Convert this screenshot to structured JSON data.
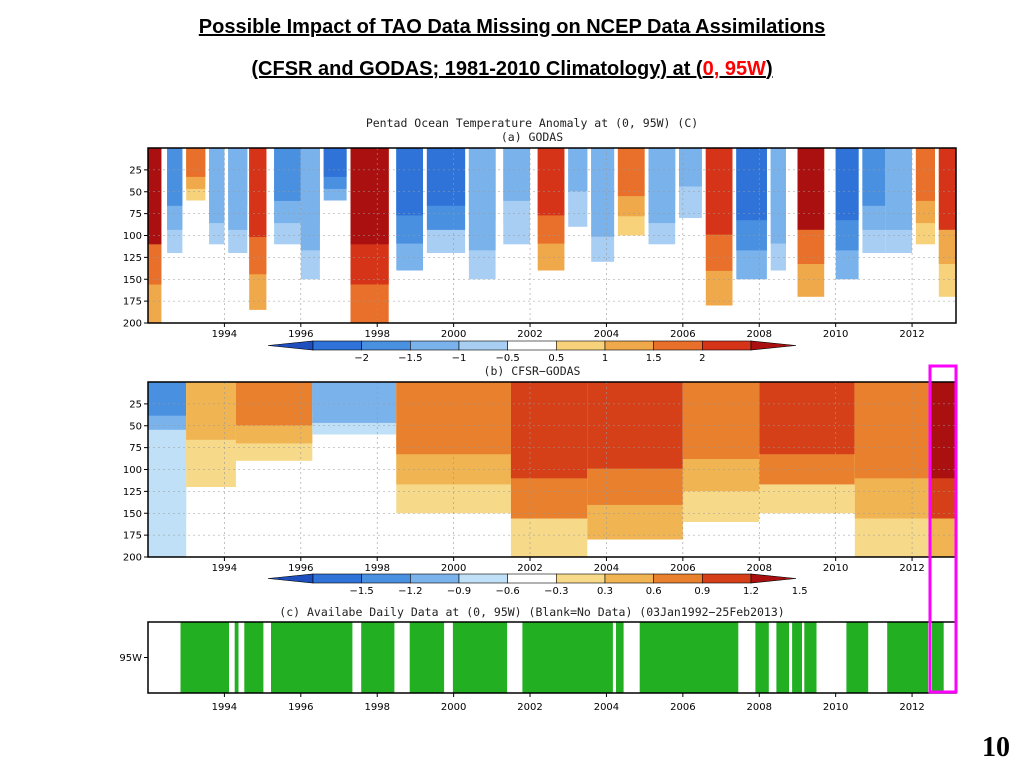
{
  "slide": {
    "title_line1": "Possible Impact of TAO Data Missing on NCEP Data Assimilations",
    "title_line2_prefix": "(CFSR and GODAS; 1981-2010 Climatology) at (",
    "title_line2_location": "0, 95W",
    "title_line2_suffix": ")",
    "page_number": "10",
    "highlight_color": "#ff00ff"
  },
  "figure_title": "Pentad Ocean Temperature Anomaly at (0, 95W) (C)",
  "chart_data": [
    {
      "type": "heatmap",
      "title": "(a) GODAS",
      "x_range": [
        1992.0,
        2013.15
      ],
      "x_ticks": [
        "1994",
        "1996",
        "1998",
        "2000",
        "2002",
        "2004",
        "2006",
        "2008",
        "2010",
        "2012"
      ],
      "y_ticks": [
        "25",
        "50",
        "75",
        "100",
        "125",
        "150",
        "175",
        "200"
      ],
      "ylim": [
        200,
        0
      ],
      "grid": true,
      "colorbar_levels": [
        "-2",
        "-1.5",
        "-1",
        "-0.5",
        "0.5",
        "1",
        "1.5",
        "2"
      ],
      "colors": [
        "#1f4fbf",
        "#2f73d8",
        "#4a90e0",
        "#7ab2ec",
        "#a8cff3",
        "#ffffff",
        "#f7d27a",
        "#f0a94a",
        "#e8702a",
        "#d63418",
        "#aa1010"
      ],
      "anomaly_events": [
        {
          "start": 1992.0,
          "end": 1992.35,
          "depth": 200,
          "value": 1.8
        },
        {
          "start": 1992.5,
          "end": 1992.9,
          "depth": 120,
          "value": -1.2
        },
        {
          "start": 1993.0,
          "end": 1993.5,
          "depth": 60,
          "value": 1.2
        },
        {
          "start": 1993.6,
          "end": 1994.0,
          "depth": 110,
          "value": -0.9
        },
        {
          "start": 1994.1,
          "end": 1994.6,
          "depth": 120,
          "value": -1.0
        },
        {
          "start": 1994.65,
          "end": 1995.1,
          "depth": 185,
          "value": 1.6
        },
        {
          "start": 1995.3,
          "end": 1996.0,
          "depth": 110,
          "value": -1.3
        },
        {
          "start": 1996.0,
          "end": 1996.5,
          "depth": 150,
          "value": -1.0
        },
        {
          "start": 1996.6,
          "end": 1997.2,
          "depth": 60,
          "value": -1.6
        },
        {
          "start": 1997.3,
          "end": 1998.3,
          "depth": 200,
          "value": 2.5
        },
        {
          "start": 1998.5,
          "end": 1999.2,
          "depth": 140,
          "value": -1.6
        },
        {
          "start": 1999.3,
          "end": 2000.3,
          "depth": 120,
          "value": -1.5
        },
        {
          "start": 2000.4,
          "end": 2001.1,
          "depth": 150,
          "value": -1.0
        },
        {
          "start": 2001.3,
          "end": 2002.0,
          "depth": 110,
          "value": -0.8
        },
        {
          "start": 2002.2,
          "end": 2002.9,
          "depth": 140,
          "value": 1.6
        },
        {
          "start": 2003.0,
          "end": 2003.5,
          "depth": 90,
          "value": -0.8
        },
        {
          "start": 2003.6,
          "end": 2004.2,
          "depth": 130,
          "value": -0.9
        },
        {
          "start": 2004.3,
          "end": 2005.0,
          "depth": 100,
          "value": 1.0
        },
        {
          "start": 2005.1,
          "end": 2005.8,
          "depth": 110,
          "value": -1.0
        },
        {
          "start": 2005.9,
          "end": 2006.5,
          "depth": 80,
          "value": -0.8
        },
        {
          "start": 2006.6,
          "end": 2007.3,
          "depth": 180,
          "value": 1.7
        },
        {
          "start": 2007.4,
          "end": 2008.2,
          "depth": 150,
          "value": -1.6
        },
        {
          "start": 2008.3,
          "end": 2008.7,
          "depth": 140,
          "value": -1.0
        },
        {
          "start": 2009.0,
          "end": 2009.7,
          "depth": 170,
          "value": 1.8
        },
        {
          "start": 2010.0,
          "end": 2010.6,
          "depth": 150,
          "value": -1.6
        },
        {
          "start": 2010.7,
          "end": 2011.3,
          "depth": 120,
          "value": -1.2
        },
        {
          "start": 2011.3,
          "end": 2012.0,
          "depth": 120,
          "value": -1.0
        },
        {
          "start": 2012.1,
          "end": 2012.6,
          "depth": 110,
          "value": 1.2
        },
        {
          "start": 2012.7,
          "end": 2013.15,
          "depth": 170,
          "value": 1.4
        }
      ]
    },
    {
      "type": "heatmap",
      "title": "(b) CFSR−GODAS",
      "x_range": [
        1992.0,
        2013.15
      ],
      "x_ticks": [
        "1994",
        "1996",
        "1998",
        "2000",
        "2002",
        "2004",
        "2006",
        "2008",
        "2010",
        "2012"
      ],
      "y_ticks": [
        "25",
        "50",
        "75",
        "100",
        "125",
        "150",
        "175",
        "200"
      ],
      "ylim": [
        200,
        0
      ],
      "grid": true,
      "colorbar_levels": [
        "-1.5",
        "-1.2",
        "-0.9",
        "-0.6",
        "-0.3",
        "0.3",
        "0.6",
        "0.9",
        "1.2",
        "1.5"
      ],
      "colors": [
        "#1f4fbf",
        "#2f73d8",
        "#4a90e0",
        "#7ab2ec",
        "#bfe0f6",
        "#ffffff",
        "#f7d98a",
        "#f0b452",
        "#e8802e",
        "#d64018",
        "#aa1010"
      ],
      "anomaly_events": [
        {
          "start": 1992.0,
          "end": 1993.0,
          "depth": 200,
          "value": -0.4
        },
        {
          "start": 1992.0,
          "end": 1994.0,
          "depth": 70,
          "value": -0.8
        },
        {
          "start": 1993.0,
          "end": 1994.3,
          "depth": 120,
          "value": 0.6
        },
        {
          "start": 1994.3,
          "end": 1996.3,
          "depth": 90,
          "value": 1.0
        },
        {
          "start": 1996.3,
          "end": 1998.5,
          "depth": 60,
          "value": -0.7
        },
        {
          "start": 1998.5,
          "end": 2001.5,
          "depth": 150,
          "value": 0.9
        },
        {
          "start": 2001.5,
          "end": 2003.5,
          "depth": 200,
          "value": 1.1
        },
        {
          "start": 2003.5,
          "end": 2006.0,
          "depth": 180,
          "value": 1.2
        },
        {
          "start": 2006.0,
          "end": 2008.0,
          "depth": 160,
          "value": 1.0
        },
        {
          "start": 2008.0,
          "end": 2010.5,
          "depth": 150,
          "value": 1.1
        },
        {
          "start": 2010.5,
          "end": 2012.5,
          "depth": 200,
          "value": 0.9
        },
        {
          "start": 2012.5,
          "end": 2013.15,
          "depth": 200,
          "value": 1.6
        }
      ]
    },
    {
      "type": "bar",
      "title": "(c) Availabe Daily Data at (0, 95W) (Blank=No Data) (03Jan1992−25Feb2013)",
      "x_range": [
        1992.0,
        2013.15
      ],
      "x_ticks": [
        "1994",
        "1996",
        "1998",
        "2000",
        "2002",
        "2004",
        "2006",
        "2008",
        "2010",
        "2012"
      ],
      "y_label": "95W",
      "series_color": "#22b022",
      "data_available_periods": [
        [
          1992.85,
          1994.12
        ],
        [
          1994.27,
          1994.37
        ],
        [
          1994.52,
          1995.02
        ],
        [
          1995.22,
          1997.35
        ],
        [
          1997.58,
          1998.45
        ],
        [
          1998.85,
          1999.75
        ],
        [
          1999.98,
          2001.4
        ],
        [
          2001.8,
          2004.17
        ],
        [
          2004.25,
          2004.45
        ],
        [
          2004.87,
          2007.45
        ],
        [
          2007.9,
          2008.25
        ],
        [
          2008.45,
          2008.78
        ],
        [
          2008.86,
          2009.12
        ],
        [
          2009.18,
          2009.5
        ],
        [
          2010.28,
          2010.85
        ],
        [
          2011.35,
          2012.42
        ],
        [
          2012.52,
          2012.83
        ]
      ]
    }
  ]
}
